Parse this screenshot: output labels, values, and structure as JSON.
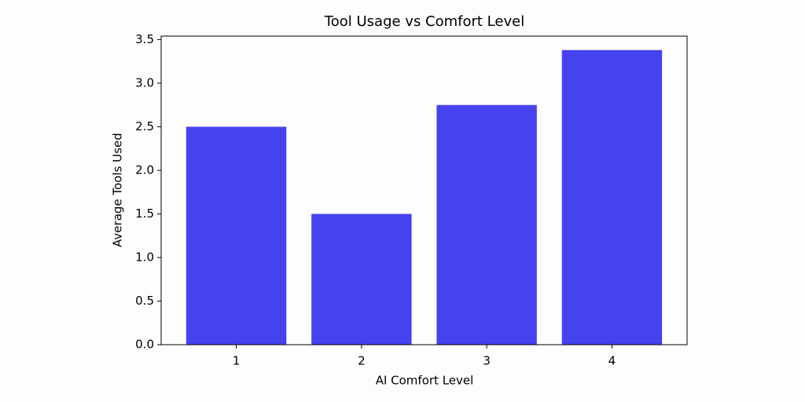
{
  "chart_data": {
    "type": "bar",
    "title": "Tool Usage vs Comfort Level",
    "x_label": "AI Comfort Level",
    "y_label": "Average Tools Used",
    "x": [
      1,
      2,
      3,
      4
    ],
    "values": [
      2.5,
      1.5,
      2.75,
      3.38
    ],
    "color": "#4643ee",
    "xlim": [
      0.4,
      4.6
    ],
    "xticks": [
      1,
      2,
      3,
      4
    ],
    "ylim": [
      0,
      3.54
    ],
    "yticks": [
      {
        "value": 0,
        "label": "0.0"
      },
      {
        "value": 0.5,
        "label": "0.5"
      },
      {
        "value": 1,
        "label": "1.0"
      },
      {
        "value": 1.5,
        "label": "1.5"
      },
      {
        "value": 2,
        "label": "2.0"
      },
      {
        "value": 2.5,
        "label": "2.5"
      },
      {
        "value": 3,
        "label": "3.0"
      },
      {
        "value": 3.5,
        "label": "3.5"
      }
    ],
    "grid": false
  }
}
